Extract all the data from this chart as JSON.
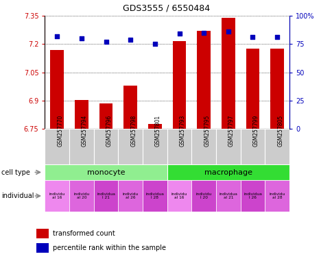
{
  "title": "GDS3555 / 6550484",
  "samples": [
    "GSM257770",
    "GSM257794",
    "GSM257796",
    "GSM257798",
    "GSM257801",
    "GSM257793",
    "GSM257795",
    "GSM257797",
    "GSM257799",
    "GSM257805"
  ],
  "bar_values": [
    7.17,
    6.905,
    6.885,
    6.98,
    6.775,
    7.215,
    7.27,
    7.34,
    7.175,
    7.175
  ],
  "percentile_values": [
    82,
    80,
    77,
    79,
    75,
    84,
    85,
    86,
    81,
    81
  ],
  "ylim_left": [
    6.75,
    7.35
  ],
  "ylim_right": [
    0,
    100
  ],
  "yticks_left": [
    6.75,
    6.9,
    7.05,
    7.2,
    7.35
  ],
  "yticks_right": [
    0,
    25,
    50,
    75,
    100
  ],
  "monocyte_color": "#90EE90",
  "macrophage_color": "#33DD33",
  "ind_color": "#EE55EE",
  "ind_color_alt": "#CC44CC",
  "bar_color": "#CC0000",
  "dot_color": "#0000BB",
  "left_axis_color": "#CC0000",
  "right_axis_color": "#0000BB",
  "sample_box_color": "#CCCCCC",
  "ind_labels": [
    "individu\nal 16",
    "individu\nal 20",
    "individua\nl 21",
    "individu\nal 26",
    "individua\nl 28",
    "individu\nal 16",
    "individu\nl 20",
    "individua\nal 21",
    "individua\nl 26",
    "individu\nal 28"
  ]
}
